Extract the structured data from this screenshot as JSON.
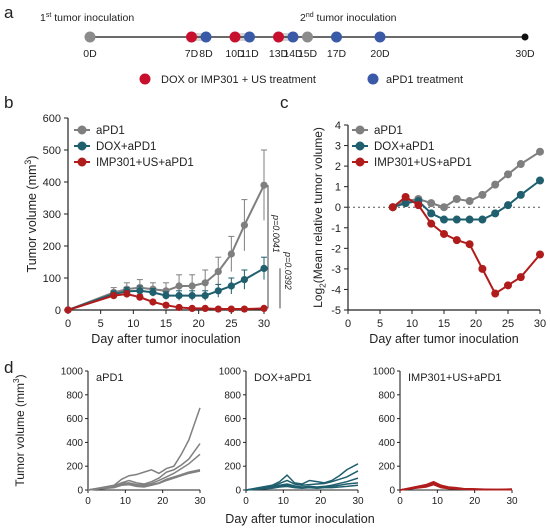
{
  "panel_labels": {
    "a": "a",
    "b": "b",
    "c": "c",
    "d": "d"
  },
  "timeline": {
    "first_label": {
      "pre": "1",
      "sup": "st",
      "post": " tumor inoculation"
    },
    "second_label": {
      "pre": "2",
      "sup": "nd",
      "post": " tumor inoculation"
    },
    "days": [
      "0D",
      "7D",
      "8D",
      "10D",
      "11D",
      "13D",
      "14D",
      "15D",
      "17D",
      "20D",
      "30D"
    ],
    "day_values": [
      0,
      7,
      8,
      10,
      11,
      13,
      14,
      15,
      17,
      20,
      30
    ],
    "markers": [
      "gray",
      "red",
      "blue",
      "red",
      "blue",
      "red",
      "blue",
      "gray",
      "blue",
      "blue",
      "black"
    ],
    "legend": {
      "red": "DOX or IMP301 + US treatment",
      "blue": "aPD1 treatment"
    },
    "colors": {
      "red": "#c8102e",
      "blue": "#3a5aa8",
      "gray": "#8c8c8c",
      "black": "#111111"
    }
  },
  "chart_data": [
    {
      "id": "b",
      "type": "line",
      "ylabel": {
        "pre": "Tumor volume  (mm",
        "sup": "3",
        "post": ")"
      },
      "xlabel": "Day after tumor inoculation",
      "xlim": [
        0,
        30
      ],
      "ylim": [
        0,
        600
      ],
      "xticks": [
        0,
        5,
        10,
        15,
        20,
        25,
        30
      ],
      "yticks": [
        0,
        100,
        200,
        300,
        400,
        500,
        600
      ],
      "x": [
        0,
        7,
        9,
        11,
        13,
        15,
        17,
        19,
        21,
        23,
        25,
        27,
        30
      ],
      "series": [
        {
          "name": "aPD1",
          "color": "#7f7f7f",
          "values": [
            0,
            55,
            65,
            70,
            65,
            60,
            75,
            75,
            85,
            120,
            175,
            265,
            390
          ],
          "err": [
            0,
            15,
            20,
            25,
            20,
            25,
            35,
            35,
            40,
            45,
            55,
            80,
            110
          ]
        },
        {
          "name": "DOX+aPD1",
          "color": "#1f5f6e",
          "values": [
            0,
            50,
            58,
            60,
            55,
            45,
            45,
            45,
            45,
            60,
            75,
            95,
            130
          ],
          "err": [
            0,
            10,
            12,
            15,
            12,
            12,
            15,
            15,
            15,
            20,
            25,
            30,
            35
          ]
        },
        {
          "name": "IMP301+US+aPD1",
          "color": "#b01c1c",
          "values": [
            0,
            45,
            50,
            40,
            25,
            15,
            8,
            5,
            5,
            3,
            3,
            3,
            5
          ],
          "err": [
            0,
            8,
            10,
            8,
            6,
            5,
            3,
            2,
            2,
            2,
            2,
            2,
            2
          ]
        }
      ],
      "annotations": [
        {
          "text": "p=0.0041"
        },
        {
          "text": "p=0.0392"
        }
      ],
      "legend": "top-left"
    },
    {
      "id": "c",
      "type": "line",
      "ylabel": {
        "pre": "Log",
        "sub": "2",
        "post": "(Mean relative tumor volume)"
      },
      "xlabel": "Day after tumor inoculation",
      "xlim": [
        0,
        30
      ],
      "ylim": [
        -5,
        4
      ],
      "xticks": [
        0,
        5,
        10,
        15,
        20,
        25,
        30
      ],
      "yticks": [
        -5,
        -4,
        -3,
        -2,
        -1,
        0,
        1,
        2,
        3,
        4
      ],
      "reference_line": 0,
      "series": [
        {
          "name": "aPD1",
          "color": "#7f7f7f",
          "x": [
            7,
            9,
            11,
            13,
            15,
            17,
            19,
            21,
            23,
            25,
            27,
            30
          ],
          "values": [
            0,
            0.3,
            0.4,
            0.2,
            0.0,
            0.4,
            0.3,
            0.6,
            1.1,
            1.6,
            2.1,
            2.7
          ]
        },
        {
          "name": "DOX+aPD1",
          "color": "#1f5f6e",
          "x": [
            7,
            9,
            11,
            13,
            15,
            17,
            19,
            21,
            23,
            25,
            27,
            30
          ],
          "values": [
            0,
            0.2,
            0.3,
            -0.3,
            -0.6,
            -0.6,
            -0.6,
            -0.6,
            -0.3,
            0.1,
            0.6,
            1.3
          ]
        },
        {
          "name": "IMP301+US+aPD1",
          "color": "#b01c1c",
          "x": [
            7,
            9,
            11,
            13,
            15,
            17,
            19,
            21,
            23,
            25,
            27,
            30
          ],
          "values": [
            0,
            0.5,
            0.1,
            -0.8,
            -1.3,
            -1.6,
            -1.8,
            -3.0,
            -4.2,
            -3.8,
            -3.4,
            -2.3
          ]
        }
      ],
      "legend": "top-left"
    },
    {
      "id": "d",
      "type": "line",
      "ylabel": {
        "pre": "Tumor volume  (mm",
        "sup": "3",
        "post": ")"
      },
      "xlabel": "Day after tumor inoculation",
      "xlim": [
        0,
        30
      ],
      "ylim": [
        0,
        1000
      ],
      "xticks": [
        0,
        10,
        20,
        30
      ],
      "yticks": [
        0,
        200,
        400,
        600,
        800,
        1000
      ],
      "x": [
        0,
        7,
        9,
        11,
        13,
        15,
        17,
        19,
        21,
        23,
        25,
        27,
        30
      ],
      "subplots": [
        {
          "title": "aPD1",
          "color": "#808080",
          "lines": [
            [
              0,
              40,
              90,
              120,
              130,
              150,
              170,
              140,
              180,
              200,
              300,
              420,
              690
            ],
            [
              0,
              35,
              60,
              80,
              60,
              50,
              70,
              100,
              150,
              170,
              210,
              260,
              390
            ],
            [
              0,
              30,
              55,
              60,
              45,
              40,
              55,
              80,
              110,
              140,
              180,
              220,
              300
            ],
            [
              0,
              25,
              45,
              50,
              35,
              30,
              45,
              60,
              90,
              110,
              130,
              150,
              170
            ],
            [
              0,
              20,
              40,
              45,
              30,
              25,
              40,
              55,
              80,
              100,
              120,
              140,
              160
            ]
          ]
        },
        {
          "title": "DOX+aPD1",
          "color": "#1f5f6e",
          "lines": [
            [
              0,
              40,
              70,
              125,
              60,
              50,
              80,
              70,
              60,
              80,
              120,
              170,
              220
            ],
            [
              0,
              30,
              55,
              80,
              50,
              40,
              45,
              50,
              55,
              70,
              90,
              110,
              160
            ],
            [
              0,
              25,
              40,
              50,
              35,
              25,
              30,
              25,
              30,
              40,
              55,
              70,
              100
            ],
            [
              0,
              20,
              35,
              40,
              30,
              20,
              25,
              20,
              25,
              30,
              40,
              50,
              60
            ],
            [
              0,
              15,
              25,
              30,
              20,
              15,
              20,
              15,
              20,
              20,
              25,
              30,
              40
            ]
          ]
        },
        {
          "title": "IMP301+US+aPD1",
          "color": "#b01c1c",
          "lines": [
            [
              0,
              45,
              70,
              40,
              25,
              20,
              12,
              10,
              8,
              6,
              5,
              5,
              8
            ],
            [
              0,
              40,
              60,
              35,
              20,
              15,
              10,
              8,
              6,
              5,
              4,
              4,
              6
            ],
            [
              0,
              35,
              55,
              30,
              18,
              12,
              8,
              6,
              5,
              4,
              3,
              3,
              5
            ],
            [
              0,
              30,
              50,
              25,
              15,
              10,
              6,
              5,
              4,
              3,
              2,
              2,
              3
            ],
            [
              0,
              25,
              45,
              20,
              12,
              8,
              5,
              4,
              3,
              2,
              2,
              2,
              2
            ]
          ]
        }
      ]
    }
  ]
}
